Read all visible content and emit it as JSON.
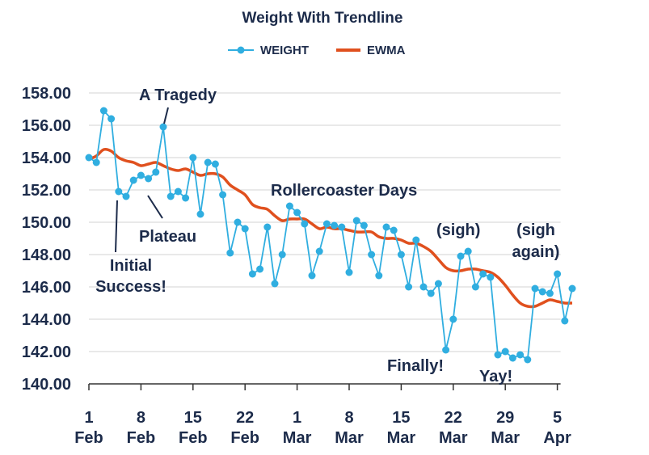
{
  "chart_data": {
    "type": "line",
    "title": "Weight With Trendline",
    "legend_position": "top-center",
    "grid": "horizontal",
    "series": [
      {
        "name": "WEIGHT",
        "color": "#30aee0",
        "marker": "circle",
        "values": [
          154.0,
          153.7,
          156.9,
          156.4,
          151.9,
          151.6,
          152.6,
          152.9,
          152.7,
          153.1,
          155.9,
          151.6,
          151.9,
          151.5,
          154.0,
          150.5,
          153.7,
          153.6,
          151.7,
          148.1,
          150.0,
          149.6,
          146.8,
          147.1,
          149.7,
          146.2,
          148.0,
          151.0,
          150.6,
          149.9,
          146.7,
          148.2,
          149.9,
          149.8,
          149.7,
          146.9,
          150.1,
          149.8,
          148.0,
          146.7,
          149.7,
          149.5,
          148.0,
          146.0,
          148.9,
          146.0,
          145.6,
          146.2,
          142.1,
          144.0,
          147.9,
          148.2,
          146.0,
          146.8,
          146.6,
          141.8,
          142.0,
          141.6,
          141.8,
          141.5,
          145.9,
          145.7,
          145.6,
          146.8,
          143.9,
          145.9
        ]
      },
      {
        "name": "EWMA",
        "color": "#e0501e",
        "values": [
          153.9,
          154.1,
          154.5,
          154.4,
          154.0,
          153.8,
          153.7,
          153.5,
          153.6,
          153.7,
          153.5,
          153.3,
          153.2,
          153.3,
          153.1,
          152.9,
          153.0,
          153.0,
          152.8,
          152.3,
          152.0,
          151.7,
          151.1,
          150.9,
          150.8,
          150.4,
          150.1,
          150.2,
          150.2,
          150.2,
          149.9,
          149.6,
          149.7,
          149.6,
          149.6,
          149.5,
          149.4,
          149.4,
          149.4,
          149.1,
          149.0,
          149.0,
          148.9,
          148.7,
          148.7,
          148.5,
          148.2,
          147.7,
          147.2,
          147.0,
          147.0,
          147.1,
          147.1,
          147.0,
          146.9,
          146.6,
          146.1,
          145.5,
          145.0,
          144.8,
          144.8,
          145.0,
          145.2,
          145.1,
          145.0,
          145.0
        ]
      }
    ],
    "x_labels": [
      {
        "index": 0,
        "line1": "1",
        "line2": "Feb"
      },
      {
        "index": 7,
        "line1": "8",
        "line2": "Feb"
      },
      {
        "index": 14,
        "line1": "15",
        "line2": "Feb"
      },
      {
        "index": 21,
        "line1": "22",
        "line2": "Feb"
      },
      {
        "index": 28,
        "line1": "1",
        "line2": "Mar"
      },
      {
        "index": 35,
        "line1": "8",
        "line2": "Mar"
      },
      {
        "index": 42,
        "line1": "15",
        "line2": "Mar"
      },
      {
        "index": 49,
        "line1": "22",
        "line2": "Mar"
      },
      {
        "index": 56,
        "line1": "29",
        "line2": "Mar"
      },
      {
        "index": 63,
        "line1": "5",
        "line2": "Apr"
      }
    ],
    "y_ticks": [
      "140.00",
      "142.00",
      "144.00",
      "146.00",
      "148.00",
      "150.00",
      "152.00",
      "154.00",
      "156.00",
      "158.00"
    ],
    "ylim": [
      140,
      158
    ],
    "annotations": [
      {
        "lines": [
          "A Tragedy"
        ]
      },
      {
        "lines": [
          "Initial",
          "Success!"
        ]
      },
      {
        "lines": [
          "Plateau"
        ]
      },
      {
        "lines": [
          "Rollercoaster Days"
        ]
      },
      {
        "lines": [
          "(sigh)"
        ]
      },
      {
        "lines": [
          "(sigh",
          "again)"
        ]
      },
      {
        "lines": [
          "Finally!"
        ]
      },
      {
        "lines": [
          "Yay!"
        ]
      }
    ]
  }
}
